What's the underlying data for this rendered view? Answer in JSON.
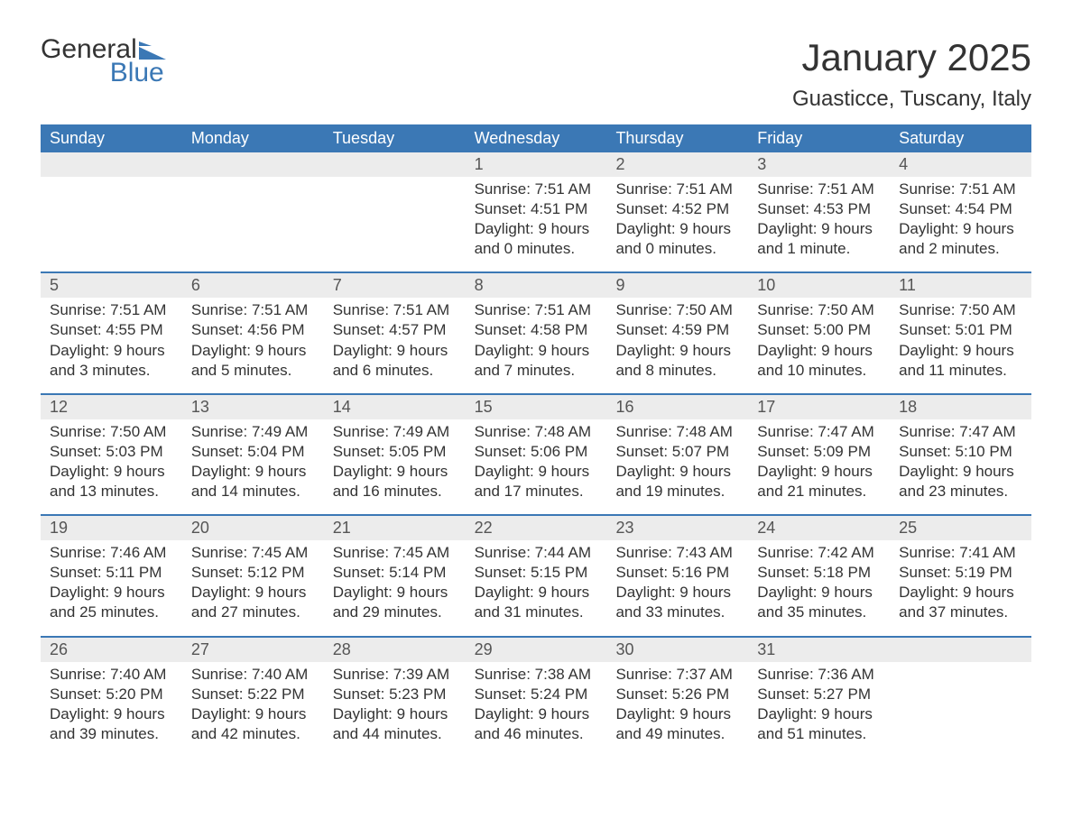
{
  "logo": {
    "word1": "General",
    "word2": "Blue"
  },
  "title": "January 2025",
  "location": "Guasticce, Tuscany, Italy",
  "colors": {
    "brand": "#3b78b5",
    "header_bg": "#3b78b5",
    "header_text": "#ffffff",
    "daynum_bg": "#ececec",
    "text": "#333333",
    "background": "#ffffff"
  },
  "fonts": {
    "title_size": 42,
    "location_size": 24,
    "weekday_size": 18,
    "body_size": 17
  },
  "weekdays": [
    "Sunday",
    "Monday",
    "Tuesday",
    "Wednesday",
    "Thursday",
    "Friday",
    "Saturday"
  ],
  "weeks": [
    [
      {
        "day": "",
        "empty": true
      },
      {
        "day": "",
        "empty": true
      },
      {
        "day": "",
        "empty": true
      },
      {
        "day": "1",
        "sunrise": "Sunrise: 7:51 AM",
        "sunset": "Sunset: 4:51 PM",
        "daylight1": "Daylight: 9 hours",
        "daylight2": "and 0 minutes."
      },
      {
        "day": "2",
        "sunrise": "Sunrise: 7:51 AM",
        "sunset": "Sunset: 4:52 PM",
        "daylight1": "Daylight: 9 hours",
        "daylight2": "and 0 minutes."
      },
      {
        "day": "3",
        "sunrise": "Sunrise: 7:51 AM",
        "sunset": "Sunset: 4:53 PM",
        "daylight1": "Daylight: 9 hours",
        "daylight2": "and 1 minute."
      },
      {
        "day": "4",
        "sunrise": "Sunrise: 7:51 AM",
        "sunset": "Sunset: 4:54 PM",
        "daylight1": "Daylight: 9 hours",
        "daylight2": "and 2 minutes."
      }
    ],
    [
      {
        "day": "5",
        "sunrise": "Sunrise: 7:51 AM",
        "sunset": "Sunset: 4:55 PM",
        "daylight1": "Daylight: 9 hours",
        "daylight2": "and 3 minutes."
      },
      {
        "day": "6",
        "sunrise": "Sunrise: 7:51 AM",
        "sunset": "Sunset: 4:56 PM",
        "daylight1": "Daylight: 9 hours",
        "daylight2": "and 5 minutes."
      },
      {
        "day": "7",
        "sunrise": "Sunrise: 7:51 AM",
        "sunset": "Sunset: 4:57 PM",
        "daylight1": "Daylight: 9 hours",
        "daylight2": "and 6 minutes."
      },
      {
        "day": "8",
        "sunrise": "Sunrise: 7:51 AM",
        "sunset": "Sunset: 4:58 PM",
        "daylight1": "Daylight: 9 hours",
        "daylight2": "and 7 minutes."
      },
      {
        "day": "9",
        "sunrise": "Sunrise: 7:50 AM",
        "sunset": "Sunset: 4:59 PM",
        "daylight1": "Daylight: 9 hours",
        "daylight2": "and 8 minutes."
      },
      {
        "day": "10",
        "sunrise": "Sunrise: 7:50 AM",
        "sunset": "Sunset: 5:00 PM",
        "daylight1": "Daylight: 9 hours",
        "daylight2": "and 10 minutes."
      },
      {
        "day": "11",
        "sunrise": "Sunrise: 7:50 AM",
        "sunset": "Sunset: 5:01 PM",
        "daylight1": "Daylight: 9 hours",
        "daylight2": "and 11 minutes."
      }
    ],
    [
      {
        "day": "12",
        "sunrise": "Sunrise: 7:50 AM",
        "sunset": "Sunset: 5:03 PM",
        "daylight1": "Daylight: 9 hours",
        "daylight2": "and 13 minutes."
      },
      {
        "day": "13",
        "sunrise": "Sunrise: 7:49 AM",
        "sunset": "Sunset: 5:04 PM",
        "daylight1": "Daylight: 9 hours",
        "daylight2": "and 14 minutes."
      },
      {
        "day": "14",
        "sunrise": "Sunrise: 7:49 AM",
        "sunset": "Sunset: 5:05 PM",
        "daylight1": "Daylight: 9 hours",
        "daylight2": "and 16 minutes."
      },
      {
        "day": "15",
        "sunrise": "Sunrise: 7:48 AM",
        "sunset": "Sunset: 5:06 PM",
        "daylight1": "Daylight: 9 hours",
        "daylight2": "and 17 minutes."
      },
      {
        "day": "16",
        "sunrise": "Sunrise: 7:48 AM",
        "sunset": "Sunset: 5:07 PM",
        "daylight1": "Daylight: 9 hours",
        "daylight2": "and 19 minutes."
      },
      {
        "day": "17",
        "sunrise": "Sunrise: 7:47 AM",
        "sunset": "Sunset: 5:09 PM",
        "daylight1": "Daylight: 9 hours",
        "daylight2": "and 21 minutes."
      },
      {
        "day": "18",
        "sunrise": "Sunrise: 7:47 AM",
        "sunset": "Sunset: 5:10 PM",
        "daylight1": "Daylight: 9 hours",
        "daylight2": "and 23 minutes."
      }
    ],
    [
      {
        "day": "19",
        "sunrise": "Sunrise: 7:46 AM",
        "sunset": "Sunset: 5:11 PM",
        "daylight1": "Daylight: 9 hours",
        "daylight2": "and 25 minutes."
      },
      {
        "day": "20",
        "sunrise": "Sunrise: 7:45 AM",
        "sunset": "Sunset: 5:12 PM",
        "daylight1": "Daylight: 9 hours",
        "daylight2": "and 27 minutes."
      },
      {
        "day": "21",
        "sunrise": "Sunrise: 7:45 AM",
        "sunset": "Sunset: 5:14 PM",
        "daylight1": "Daylight: 9 hours",
        "daylight2": "and 29 minutes."
      },
      {
        "day": "22",
        "sunrise": "Sunrise: 7:44 AM",
        "sunset": "Sunset: 5:15 PM",
        "daylight1": "Daylight: 9 hours",
        "daylight2": "and 31 minutes."
      },
      {
        "day": "23",
        "sunrise": "Sunrise: 7:43 AM",
        "sunset": "Sunset: 5:16 PM",
        "daylight1": "Daylight: 9 hours",
        "daylight2": "and 33 minutes."
      },
      {
        "day": "24",
        "sunrise": "Sunrise: 7:42 AM",
        "sunset": "Sunset: 5:18 PM",
        "daylight1": "Daylight: 9 hours",
        "daylight2": "and 35 minutes."
      },
      {
        "day": "25",
        "sunrise": "Sunrise: 7:41 AM",
        "sunset": "Sunset: 5:19 PM",
        "daylight1": "Daylight: 9 hours",
        "daylight2": "and 37 minutes."
      }
    ],
    [
      {
        "day": "26",
        "sunrise": "Sunrise: 7:40 AM",
        "sunset": "Sunset: 5:20 PM",
        "daylight1": "Daylight: 9 hours",
        "daylight2": "and 39 minutes."
      },
      {
        "day": "27",
        "sunrise": "Sunrise: 7:40 AM",
        "sunset": "Sunset: 5:22 PM",
        "daylight1": "Daylight: 9 hours",
        "daylight2": "and 42 minutes."
      },
      {
        "day": "28",
        "sunrise": "Sunrise: 7:39 AM",
        "sunset": "Sunset: 5:23 PM",
        "daylight1": "Daylight: 9 hours",
        "daylight2": "and 44 minutes."
      },
      {
        "day": "29",
        "sunrise": "Sunrise: 7:38 AM",
        "sunset": "Sunset: 5:24 PM",
        "daylight1": "Daylight: 9 hours",
        "daylight2": "and 46 minutes."
      },
      {
        "day": "30",
        "sunrise": "Sunrise: 7:37 AM",
        "sunset": "Sunset: 5:26 PM",
        "daylight1": "Daylight: 9 hours",
        "daylight2": "and 49 minutes."
      },
      {
        "day": "31",
        "sunrise": "Sunrise: 7:36 AM",
        "sunset": "Sunset: 5:27 PM",
        "daylight1": "Daylight: 9 hours",
        "daylight2": "and 51 minutes."
      },
      {
        "day": "",
        "empty": true
      }
    ]
  ]
}
